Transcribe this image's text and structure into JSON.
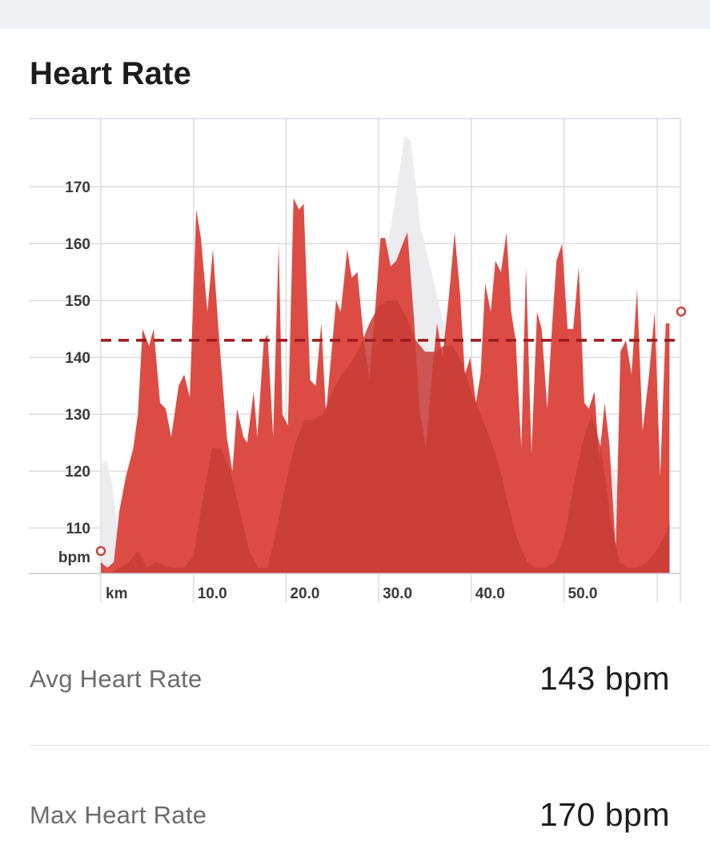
{
  "header": {
    "title": "Heart Rate"
  },
  "colors": {
    "primary_area": "#dd4c44",
    "secondary_area": "#c93c36",
    "elevation": "#ececee",
    "avg_line": "#9b1a1a",
    "grid": "#dcdce2",
    "marker": "#c9443c"
  },
  "chart_data": {
    "type": "area",
    "xlabel": "km",
    "ylabel": "bpm",
    "x_range": [
      0,
      62.5
    ],
    "y_range": [
      102,
      179
    ],
    "x_ticks": [
      10,
      20,
      30,
      40,
      50
    ],
    "x_tick_labels": [
      "10.0",
      "20.0",
      "30.0",
      "40.0",
      "50.0"
    ],
    "y_ticks": [
      110,
      120,
      130,
      140,
      150,
      160,
      170
    ],
    "y_tick_labels": [
      "110",
      "120",
      "130",
      "140",
      "150",
      "160",
      "170"
    ],
    "average": 143,
    "grid": true,
    "heart_rate": [
      [
        0,
        104
      ],
      [
        0.7,
        103
      ],
      [
        1.4,
        104
      ],
      [
        2,
        113
      ],
      [
        2.7,
        119
      ],
      [
        3.5,
        124
      ],
      [
        4,
        130
      ],
      [
        4.5,
        145
      ],
      [
        5.2,
        142
      ],
      [
        5.7,
        145
      ],
      [
        6.4,
        132
      ],
      [
        7,
        131
      ],
      [
        7.6,
        126
      ],
      [
        8.4,
        135
      ],
      [
        9,
        137
      ],
      [
        9.6,
        133
      ],
      [
        10.3,
        166
      ],
      [
        10.8,
        161
      ],
      [
        11.5,
        148
      ],
      [
        12.1,
        159
      ],
      [
        12.7,
        145
      ],
      [
        13.6,
        126
      ],
      [
        14.2,
        120
      ],
      [
        14.7,
        131
      ],
      [
        15.4,
        126
      ],
      [
        15.8,
        125
      ],
      [
        16.5,
        134
      ],
      [
        16.9,
        126
      ],
      [
        17.6,
        143
      ],
      [
        18,
        144
      ],
      [
        18.6,
        126
      ],
      [
        19.2,
        160
      ],
      [
        19.6,
        130
      ],
      [
        20.2,
        128
      ],
      [
        20.8,
        168
      ],
      [
        21.4,
        166
      ],
      [
        21.9,
        167
      ],
      [
        22.6,
        136
      ],
      [
        23.2,
        135
      ],
      [
        23.8,
        146
      ],
      [
        24.3,
        130
      ],
      [
        25.4,
        150
      ],
      [
        25.9,
        148
      ],
      [
        26.6,
        159
      ],
      [
        27.1,
        154
      ],
      [
        27.7,
        155
      ],
      [
        28.4,
        143
      ],
      [
        29,
        136
      ],
      [
        29.6,
        148
      ],
      [
        30.2,
        161
      ],
      [
        30.7,
        161
      ],
      [
        31.3,
        156
      ],
      [
        31.9,
        157
      ],
      [
        32.6,
        160
      ],
      [
        33.1,
        162
      ],
      [
        33.8,
        147
      ],
      [
        34.4,
        131
      ],
      [
        35.1,
        124
      ],
      [
        35.7,
        136
      ],
      [
        36.3,
        146
      ],
      [
        36.9,
        140
      ],
      [
        37.6,
        151
      ],
      [
        38.2,
        162
      ],
      [
        38.8,
        151
      ],
      [
        39.3,
        137
      ],
      [
        39.9,
        140
      ],
      [
        40.5,
        132
      ],
      [
        41,
        137
      ],
      [
        41.5,
        153
      ],
      [
        42.1,
        148
      ],
      [
        42.6,
        157
      ],
      [
        43.2,
        155
      ],
      [
        43.8,
        162
      ],
      [
        44.3,
        148
      ],
      [
        44.8,
        143
      ],
      [
        45.4,
        124
      ],
      [
        45.9,
        156
      ],
      [
        46.5,
        123
      ],
      [
        47.1,
        148
      ],
      [
        47.6,
        145
      ],
      [
        48.2,
        131
      ],
      [
        48.7,
        145
      ],
      [
        49.2,
        157
      ],
      [
        49.8,
        160
      ],
      [
        50.4,
        145
      ],
      [
        51,
        145
      ],
      [
        51.6,
        156
      ],
      [
        52.2,
        132
      ],
      [
        52.7,
        131
      ],
      [
        53.3,
        134
      ],
      [
        53.8,
        122
      ],
      [
        54.4,
        132
      ],
      [
        54.9,
        125
      ],
      [
        55.6,
        106
      ],
      [
        56.1,
        141
      ],
      [
        56.7,
        143
      ],
      [
        57.3,
        137
      ],
      [
        57.9,
        152
      ],
      [
        58.5,
        127
      ],
      [
        59.2,
        137
      ],
      [
        59.8,
        148
      ],
      [
        60.4,
        119
      ],
      [
        61,
        146
      ],
      [
        61.4,
        146
      ]
    ],
    "heart_rate_secondary": [
      [
        0,
        102
      ],
      [
        1,
        102
      ],
      [
        2,
        103
      ],
      [
        3,
        104
      ],
      [
        4,
        106
      ],
      [
        5,
        103
      ],
      [
        6,
        104
      ],
      [
        7.5,
        103
      ],
      [
        9,
        103
      ],
      [
        10,
        105
      ],
      [
        11,
        115
      ],
      [
        12,
        124
      ],
      [
        13,
        124
      ],
      [
        14,
        120
      ],
      [
        15,
        113
      ],
      [
        16,
        106
      ],
      [
        17,
        103
      ],
      [
        18,
        103
      ],
      [
        19,
        110
      ],
      [
        20,
        118
      ],
      [
        21,
        125
      ],
      [
        22,
        129
      ],
      [
        23,
        129
      ],
      [
        24,
        130
      ],
      [
        25,
        134
      ],
      [
        26,
        137
      ],
      [
        27,
        139
      ],
      [
        28,
        142
      ],
      [
        29,
        146
      ],
      [
        30,
        149
      ],
      [
        31,
        150
      ],
      [
        32,
        150
      ],
      [
        33,
        147
      ],
      [
        34,
        143
      ],
      [
        35,
        141
      ],
      [
        36,
        141
      ],
      [
        37,
        142
      ],
      [
        38,
        142
      ],
      [
        39,
        139
      ],
      [
        40,
        134
      ],
      [
        41,
        130
      ],
      [
        42,
        126
      ],
      [
        43,
        121
      ],
      [
        44,
        114
      ],
      [
        45,
        108
      ],
      [
        46,
        104
      ],
      [
        47,
        103
      ],
      [
        48,
        103
      ],
      [
        49,
        104
      ],
      [
        50,
        108
      ],
      [
        51,
        117
      ],
      [
        52,
        125
      ],
      [
        53,
        130
      ],
      [
        54,
        124
      ],
      [
        55,
        112
      ],
      [
        56,
        104
      ],
      [
        57,
        103
      ],
      [
        58,
        103
      ],
      [
        59,
        104
      ],
      [
        60,
        106
      ],
      [
        61,
        109
      ],
      [
        61.4,
        111
      ]
    ],
    "elevation": [
      [
        0,
        121
      ],
      [
        0.6,
        122
      ],
      [
        1.2,
        118
      ],
      [
        1.8,
        110
      ],
      [
        2.4,
        104
      ],
      [
        3.5,
        103
      ],
      [
        10,
        103
      ],
      [
        20,
        103
      ],
      [
        26,
        103
      ],
      [
        28,
        130
      ],
      [
        30,
        150
      ],
      [
        31,
        160
      ],
      [
        32,
        170
      ],
      [
        32.8,
        179
      ],
      [
        33.5,
        178
      ],
      [
        34.5,
        163
      ],
      [
        36,
        153
      ],
      [
        37,
        146
      ],
      [
        38,
        140
      ],
      [
        40,
        132
      ],
      [
        45,
        126
      ],
      [
        50,
        124
      ],
      [
        52.5,
        128
      ],
      [
        53.5,
        128
      ],
      [
        55,
        122
      ],
      [
        57,
        111
      ],
      [
        59,
        104
      ],
      [
        61.4,
        103
      ]
    ]
  },
  "stats": {
    "avg_label": "Avg Heart Rate",
    "avg_value": "143 bpm",
    "max_label": "Max Heart Rate",
    "max_value": "170 bpm"
  }
}
